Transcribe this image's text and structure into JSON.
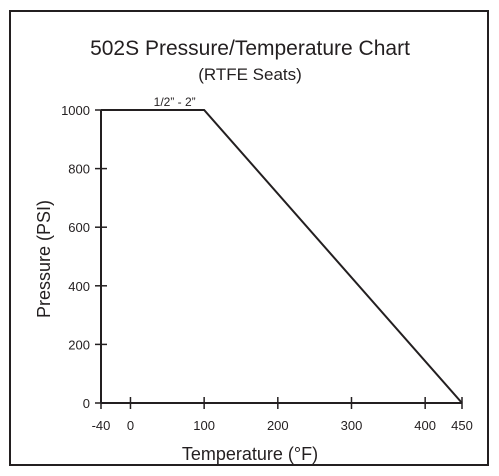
{
  "chart_data": {
    "type": "line",
    "title": "502S Pressure/Temperature Chart",
    "subtitle": "(RTFE Seats)",
    "xlabel": "Temperature (°F)",
    "ylabel": "Pressure (PSI)",
    "xlim": [
      -40,
      450
    ],
    "ylim": [
      0,
      1000
    ],
    "x_ticks": [
      -40,
      0,
      100,
      200,
      300,
      400,
      450
    ],
    "y_ticks": [
      0,
      200,
      400,
      600,
      800,
      1000
    ],
    "grid": false,
    "series": [
      {
        "name": "1/2\" - 2\"",
        "color": "#231f20",
        "points": [
          {
            "x": -40,
            "y": 1000
          },
          {
            "x": 100,
            "y": 1000
          },
          {
            "x": 450,
            "y": 0
          }
        ]
      }
    ],
    "annotations": [
      {
        "text": "1/2” - 2”",
        "x": 60,
        "y": 1000
      }
    ]
  }
}
